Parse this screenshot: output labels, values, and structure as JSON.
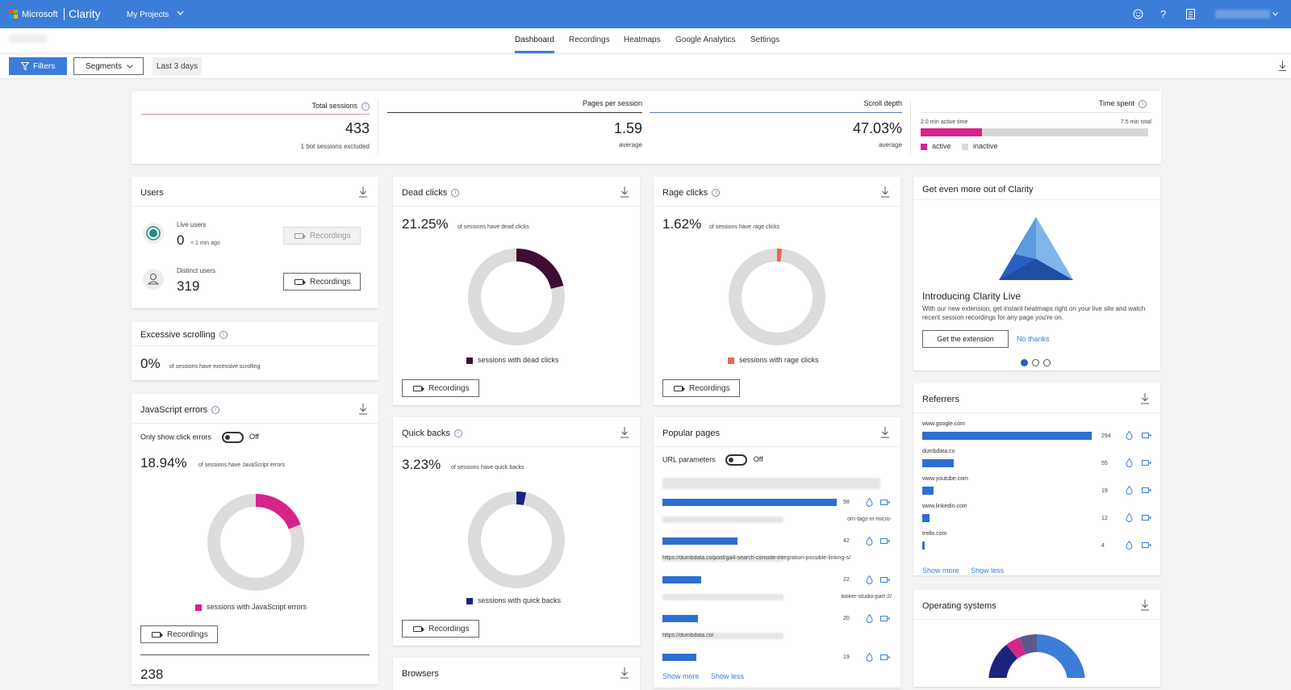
{
  "topbar": {
    "brand_microsoft": "Microsoft",
    "brand_product": "Clarity",
    "project": "My Projects"
  },
  "tabs": [
    "Dashboard",
    "Recordings",
    "Heatmaps",
    "Google Analytics",
    "Settings"
  ],
  "filters": {
    "filters_label": "Filters",
    "segments_label": "Segments",
    "range_label": "Last 3 days"
  },
  "summary": {
    "total_sessions": {
      "label": "Total sessions",
      "value": "433",
      "sub": "1 bot sessions excluded"
    },
    "pages_per_session": {
      "label": "Pages per session",
      "value": "1.59",
      "sub": "average"
    },
    "scroll_depth": {
      "label": "Scroll depth",
      "value": "47.03%",
      "sub": "average"
    },
    "time_spent": {
      "label": "Time spent",
      "active_text": "2.0 min active time",
      "total_text": "7.5 min total",
      "active_label": "active",
      "inactive_label": "inactive",
      "active_fraction": 0.27
    }
  },
  "users": {
    "title": "Users",
    "live_label": "Live users",
    "live_value": "0",
    "live_ago": "< 1 min ago",
    "distinct_label": "Distinct users",
    "distinct_value": "319",
    "recordings": "Recordings"
  },
  "excessive": {
    "title": "Excessive scrolling",
    "value": "0%",
    "desc": "of sessions have excessive scrolling"
  },
  "js_errors": {
    "title": "JavaScript errors",
    "toggle_label": "Only show click errors",
    "toggle_state": "Off",
    "value": "18.94%",
    "desc": "of sessions have JavaScript errors",
    "legend": "sessions with JavaScript errors",
    "recordings": "Recordings",
    "total_value": "238",
    "fraction": 0.1894,
    "color": "#d6248a"
  },
  "dead_clicks": {
    "title": "Dead clicks",
    "value": "21.25%",
    "desc": "of sessions have dead clicks",
    "legend": "sessions with dead clicks",
    "recordings": "Recordings",
    "fraction": 0.2125,
    "color": "#3d0d33"
  },
  "quick_backs": {
    "title": "Quick backs",
    "value": "3.23%",
    "desc": "of sessions have quick backs",
    "legend": "sessions with quick backs",
    "recordings": "Recordings",
    "fraction": 0.0323,
    "color": "#1a237e"
  },
  "browsers": {
    "title": "Browsers"
  },
  "rage_clicks": {
    "title": "Rage clicks",
    "value": "1.62%",
    "desc": "of sessions have rage clicks",
    "legend": "sessions with rage clicks",
    "recordings": "Recordings",
    "fraction": 0.0162,
    "color": "#e36b4f"
  },
  "popular": {
    "title": "Popular pages",
    "toggle_label": "URL parameters",
    "toggle_state": "Off",
    "show_more": "Show more",
    "show_less": "Show less",
    "rows": [
      {
        "url": "",
        "count": "98",
        "value": 98
      },
      {
        "url": "om-tags-in-micro-",
        "count": "42",
        "value": 42
      },
      {
        "url": "https://dumbdata.co/post/ga4-search-console-integration-possible-linking-s/",
        "count": "22",
        "value": 22
      },
      {
        "url": "looker-studio-part-2/",
        "count": "20",
        "value": 20
      },
      {
        "url": "https://dumbdata.co/",
        "count": "19",
        "value": 19
      }
    ]
  },
  "promo": {
    "title": "Get even more out of Clarity",
    "headline": "Introducing Clarity Live",
    "body": "With our new extension, get instant heatmaps right on your live site and watch recent session recordings for any page you're on.",
    "primary": "Get the extension",
    "secondary": "No thanks"
  },
  "referrers": {
    "title": "Referrers",
    "show_more": "Show more",
    "show_less": "Show less",
    "items": [
      {
        "name": "www.google.com",
        "count": "294",
        "value": 294
      },
      {
        "name": "dumbdata.co",
        "count": "55",
        "value": 55
      },
      {
        "name": "www.youtube.com",
        "count": "19",
        "value": 19
      },
      {
        "name": "www.linkedin.com",
        "count": "12",
        "value": 12
      },
      {
        "name": "trello.com",
        "count": "4",
        "value": 4
      }
    ]
  },
  "os": {
    "title": "Operating systems"
  }
}
